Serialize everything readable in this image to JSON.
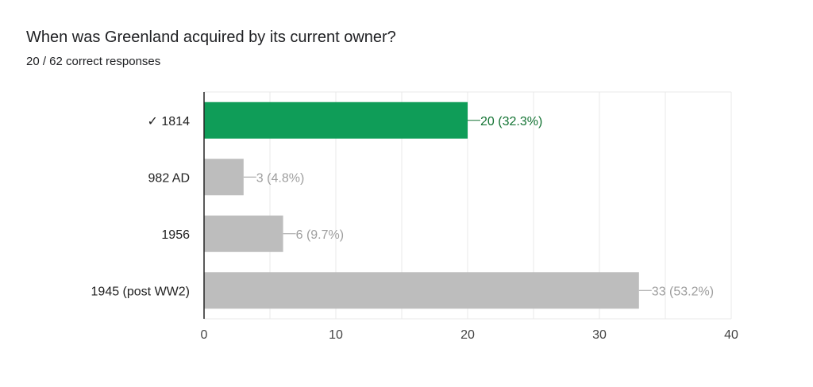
{
  "title": "When was Greenland acquired by its current owner?",
  "subtitle": "20 / 62 correct responses",
  "colors": {
    "correct": "#0f9d58",
    "correct_label": "#137333",
    "incorrect": "#bdbdbd",
    "incorrect_label": "#9e9e9e",
    "grid": "#e8e8e8"
  },
  "chart_data": {
    "type": "bar",
    "orientation": "horizontal",
    "categories": [
      "✓ 1814",
      "982 AD",
      "1956",
      "1945 (post WW2)"
    ],
    "values": [
      20,
      3,
      6,
      33
    ],
    "labels": [
      "20 (32.3%)",
      "3 (4.8%)",
      "6 (9.7%)",
      "33 (53.2%)"
    ],
    "correct": [
      true,
      false,
      false,
      false
    ],
    "xlim": [
      0,
      40
    ],
    "xticks": [
      0,
      10,
      20,
      30,
      40
    ],
    "grid": true,
    "legend": "none"
  }
}
